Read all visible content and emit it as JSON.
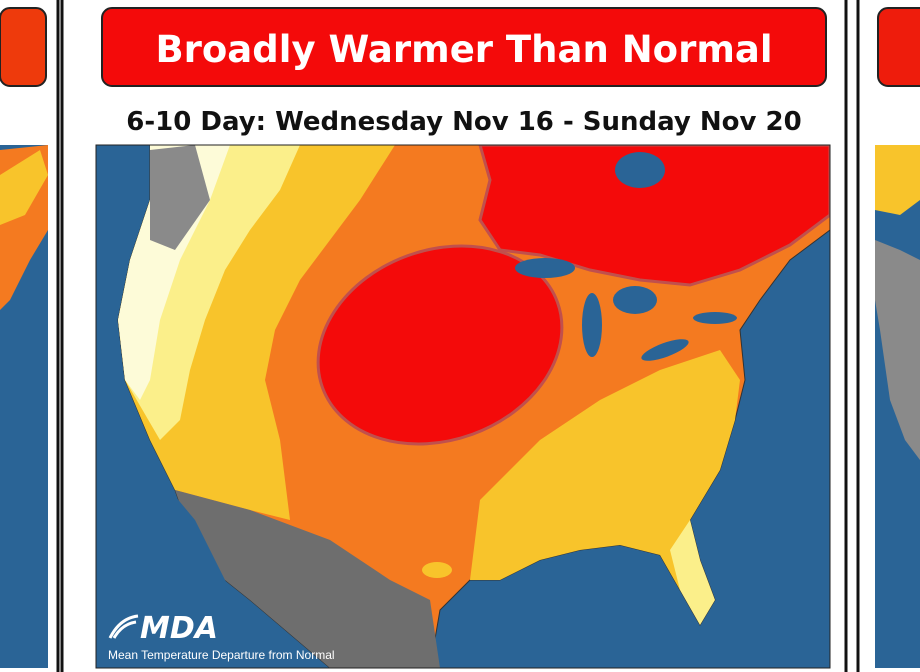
{
  "panel": {
    "title": "Broadly Warmer Than Normal",
    "subtitle": "6-10 Day: Wednesday Nov 16 - Sunday Nov 20",
    "logo": "MDA",
    "caption": "Mean Temperature Departure from Normal"
  }
}
